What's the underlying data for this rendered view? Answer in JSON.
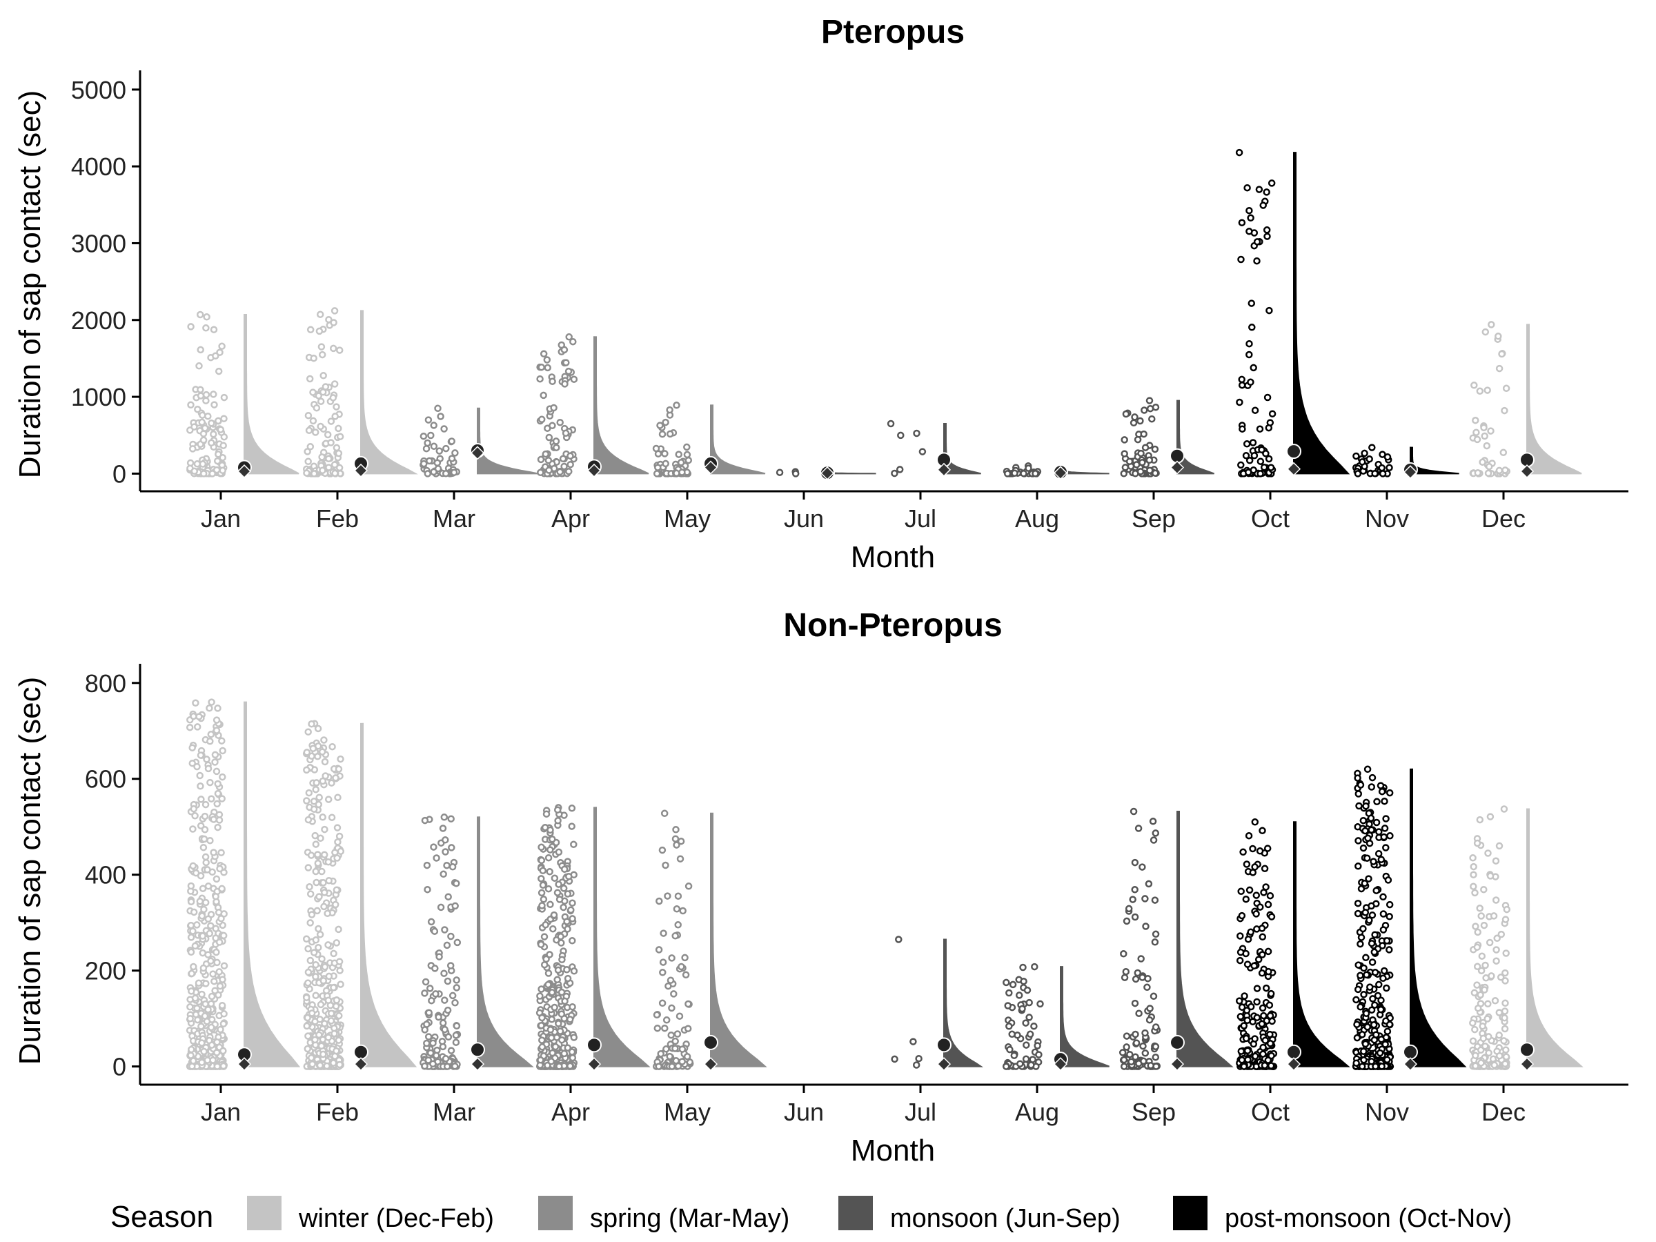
{
  "colors": {
    "winter (Dec-Feb)": "#c4c4c4",
    "spring (Mar-May)": "#8c8c8c",
    "monsoon (Jun-Sep)": "#545454",
    "post-monsoon (Oct-Nov)": "#000000",
    "mean_point": "#222222",
    "median_marker": "#333333"
  },
  "legend": {
    "title": "Season",
    "position": "bottom",
    "items": [
      "winter (Dec-Feb)",
      "spring (Mar-May)",
      "monsoon (Jun-Sep)",
      "post-monsoon (Oct-Nov)"
    ]
  },
  "chart_data": [
    {
      "type": "raincloud",
      "title": "Pteropus",
      "xlabel": "Month",
      "ylabel": "Duration of sap contact (sec)",
      "ylim": [
        -230,
        5250
      ],
      "yticks": [
        0,
        1000,
        2000,
        3000,
        4000,
        5000
      ],
      "grid": false,
      "categories": [
        "Jan",
        "Feb",
        "Mar",
        "Apr",
        "May",
        "Jun",
        "Jul",
        "Aug",
        "Sep",
        "Oct",
        "Nov",
        "Dec"
      ],
      "season": [
        "winter (Dec-Feb)",
        "winter (Dec-Feb)",
        "spring (Mar-May)",
        "spring (Mar-May)",
        "spring (Mar-May)",
        "monsoon (Jun-Sep)",
        "monsoon (Jun-Sep)",
        "monsoon (Jun-Sep)",
        "monsoon (Jun-Sep)",
        "post-monsoon (Oct-Nov)",
        "post-monsoon (Oct-Nov)",
        "winter (Dec-Feb)"
      ],
      "max": [
        2070,
        2120,
        850,
        1780,
        890,
        25,
        650,
        100,
        950,
        4180,
        340,
        1940
      ],
      "mean": [
        80,
        130,
        300,
        90,
        130,
        10,
        180,
        20,
        230,
        290,
        50,
        180
      ],
      "median": [
        30,
        40,
        270,
        40,
        80,
        5,
        50,
        10,
        80,
        60,
        20,
        30
      ],
      "n_points": [
        120,
        110,
        45,
        90,
        50,
        3,
        6,
        25,
        60,
        80,
        30,
        45
      ],
      "density_width": [
        0.45,
        0.45,
        0.5,
        0.45,
        0.45,
        0.4,
        0.3,
        0.4,
        0.3,
        0.45,
        0.4,
        0.45
      ]
    },
    {
      "type": "raincloud",
      "title": "Non-Pteropus",
      "xlabel": "Month",
      "ylabel": "Duration of sap contact (sec)",
      "ylim": [
        -38,
        840
      ],
      "yticks": [
        0,
        200,
        400,
        600,
        800
      ],
      "grid": false,
      "categories": [
        "Jan",
        "Feb",
        "Mar",
        "Apr",
        "May",
        "Jun",
        "Jul",
        "Aug",
        "Sep",
        "Oct",
        "Nov",
        "Dec"
      ],
      "season": [
        "winter (Dec-Feb)",
        "winter (Dec-Feb)",
        "spring (Mar-May)",
        "spring (Mar-May)",
        "spring (Mar-May)",
        "monsoon (Jun-Sep)",
        "monsoon (Jun-Sep)",
        "monsoon (Jun-Sep)",
        "monsoon (Jun-Sep)",
        "post-monsoon (Oct-Nov)",
        "post-monsoon (Oct-Nov)",
        "winter (Dec-Feb)"
      ],
      "max": [
        760,
        715,
        520,
        540,
        528,
        null,
        265,
        208,
        532,
        510,
        620,
        537
      ],
      "mean": [
        25,
        30,
        35,
        45,
        50,
        null,
        45,
        15,
        50,
        30,
        30,
        35
      ],
      "median": [
        5,
        5,
        5,
        5,
        5,
        null,
        5,
        5,
        5,
        5,
        5,
        5
      ],
      "n_points": [
        500,
        450,
        150,
        400,
        100,
        0,
        5,
        60,
        100,
        200,
        350,
        180
      ],
      "density_width": [
        0.45,
        0.45,
        0.45,
        0.45,
        0.45,
        0,
        0.3,
        0.4,
        0.45,
        0.45,
        0.45,
        0.45
      ]
    }
  ]
}
